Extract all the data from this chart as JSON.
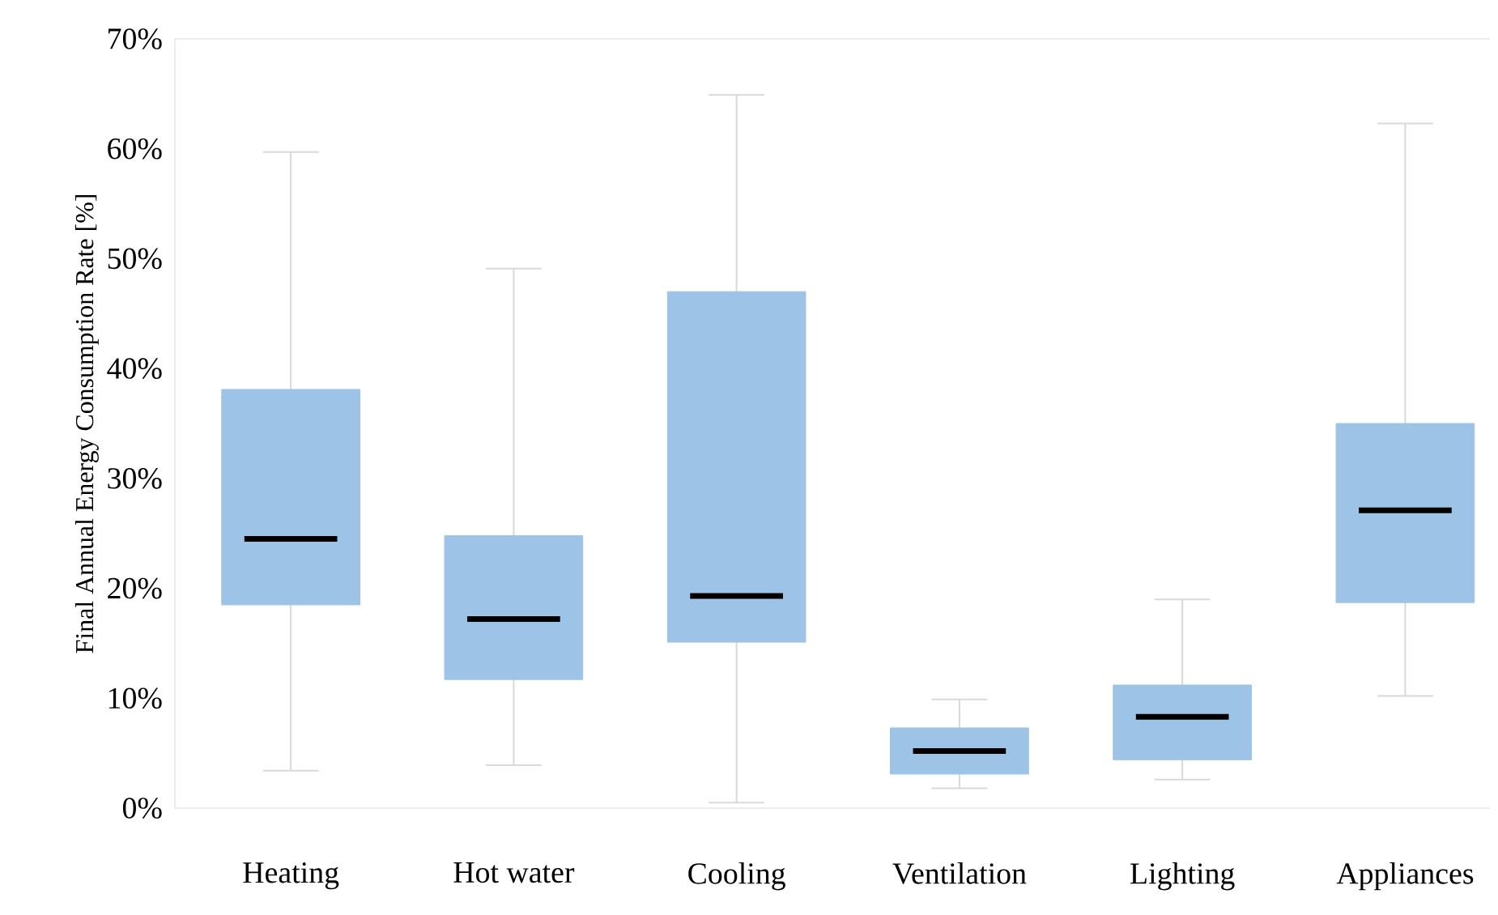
{
  "chart_data": {
    "type": "box",
    "ylabel": "Final Annual Energy Consumption Rate [%]",
    "categories": [
      "Heating",
      "Hot water",
      "Cooling",
      "Ventilation",
      "Lighting",
      "Appliances"
    ],
    "boxes": [
      {
        "low": 3.4,
        "q1": 18.5,
        "median": 24.5,
        "q3": 38.1,
        "high": 59.7
      },
      {
        "low": 3.9,
        "q1": 11.7,
        "median": 17.2,
        "q3": 24.8,
        "high": 49.1
      },
      {
        "low": 0.5,
        "q1": 15.1,
        "median": 19.3,
        "q3": 47.0,
        "high": 64.9
      },
      {
        "low": 1.8,
        "q1": 3.1,
        "median": 5.2,
        "q3": 7.3,
        "high": 9.9
      },
      {
        "low": 2.6,
        "q1": 4.4,
        "median": 8.3,
        "q3": 11.2,
        "high": 19.0
      },
      {
        "low": 10.2,
        "q1": 18.7,
        "median": 27.1,
        "q3": 35.0,
        "high": 62.3
      }
    ],
    "color": "#9dc3e6",
    "ylim": [
      0,
      70
    ],
    "yticks": [
      {
        "value": 0,
        "label": "0%"
      },
      {
        "value": 10,
        "label": "10%"
      },
      {
        "value": 20,
        "label": "20%"
      },
      {
        "value": 30,
        "label": "30%"
      },
      {
        "value": 40,
        "label": "40%"
      },
      {
        "value": 50,
        "label": "50%"
      },
      {
        "value": 60,
        "label": "60%"
      },
      {
        "value": 70,
        "label": "70%"
      }
    ]
  }
}
